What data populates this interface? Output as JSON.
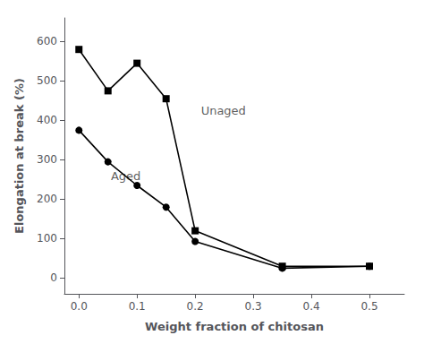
{
  "chart_data": {
    "type": "line",
    "x_label": "Weight fraction of chitosan",
    "y_label": "Elongation at break (%)",
    "x": [
      0.0,
      0.05,
      0.1,
      0.15,
      0.2,
      0.35,
      0.5
    ],
    "series": [
      {
        "values": [
          580,
          475,
          545,
          455,
          120,
          30,
          30
        ],
        "color": "#000000",
        "marker": "square",
        "line_style": "solid"
      },
      {
        "values": [
          375,
          295,
          235,
          180,
          93,
          25,
          30
        ],
        "color": "#000000",
        "marker": "circle",
        "line_style": "solid"
      }
    ],
    "annotations": [
      {
        "text": "Unaged",
        "x": 0.21,
        "y": 425
      },
      {
        "text": "Aged",
        "x": 0.055,
        "y": 258
      }
    ],
    "xlim": [
      -0.025,
      0.56
    ],
    "ylim": [
      -40,
      660
    ],
    "xticks": [
      {
        "value": 0,
        "label": "0.0"
      },
      0.1,
      0.2,
      0.3,
      0.4,
      0.5
    ],
    "yticks": [
      0,
      100,
      200,
      300,
      400,
      500,
      600
    ],
    "grid": false
  }
}
